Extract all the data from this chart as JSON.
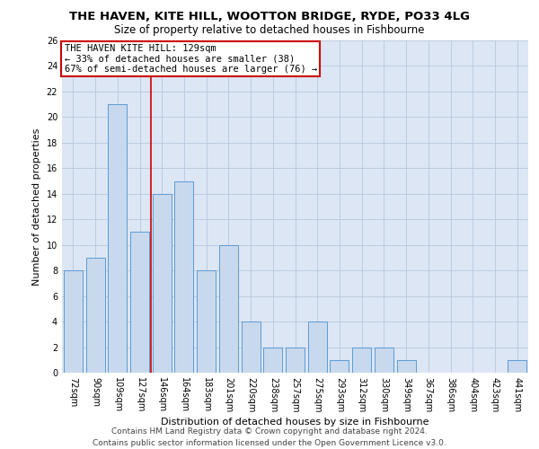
{
  "title1": "THE HAVEN, KITE HILL, WOOTTON BRIDGE, RYDE, PO33 4LG",
  "title2": "Size of property relative to detached houses in Fishbourne",
  "xlabel": "Distribution of detached houses by size in Fishbourne",
  "ylabel": "Number of detached properties",
  "categories": [
    "72sqm",
    "90sqm",
    "109sqm",
    "127sqm",
    "146sqm",
    "164sqm",
    "183sqm",
    "201sqm",
    "220sqm",
    "238sqm",
    "257sqm",
    "275sqm",
    "293sqm",
    "312sqm",
    "330sqm",
    "349sqm",
    "367sqm",
    "386sqm",
    "404sqm",
    "423sqm",
    "441sqm"
  ],
  "values": [
    8,
    9,
    21,
    11,
    14,
    15,
    8,
    10,
    4,
    2,
    2,
    4,
    1,
    2,
    2,
    1,
    0,
    0,
    0,
    0,
    1
  ],
  "bar_color": "#c9d9ed",
  "bar_edge_color": "#5b9bd5",
  "annotation_line1": "THE HAVEN KITE HILL: 129sqm",
  "annotation_line2": "← 33% of detached houses are smaller (38)",
  "annotation_line3": "67% of semi-detached houses are larger (76) →",
  "annotation_box_color": "#ffffff",
  "annotation_box_edge": "#cc0000",
  "red_line_color": "#cc0000",
  "ylim": [
    0,
    26
  ],
  "yticks": [
    0,
    2,
    4,
    6,
    8,
    10,
    12,
    14,
    16,
    18,
    20,
    22,
    24,
    26
  ],
  "background_color": "#ffffff",
  "plot_bg_color": "#dce6f5",
  "grid_color": "#b8c8dc",
  "footer_line1": "Contains HM Land Registry data © Crown copyright and database right 2024.",
  "footer_line2": "Contains public sector information licensed under the Open Government Licence v3.0.",
  "title_fontsize": 9.5,
  "subtitle_fontsize": 8.5,
  "xlabel_fontsize": 8,
  "ylabel_fontsize": 8,
  "tick_fontsize": 7,
  "annotation_fontsize": 7.5,
  "footer_fontsize": 6.5
}
